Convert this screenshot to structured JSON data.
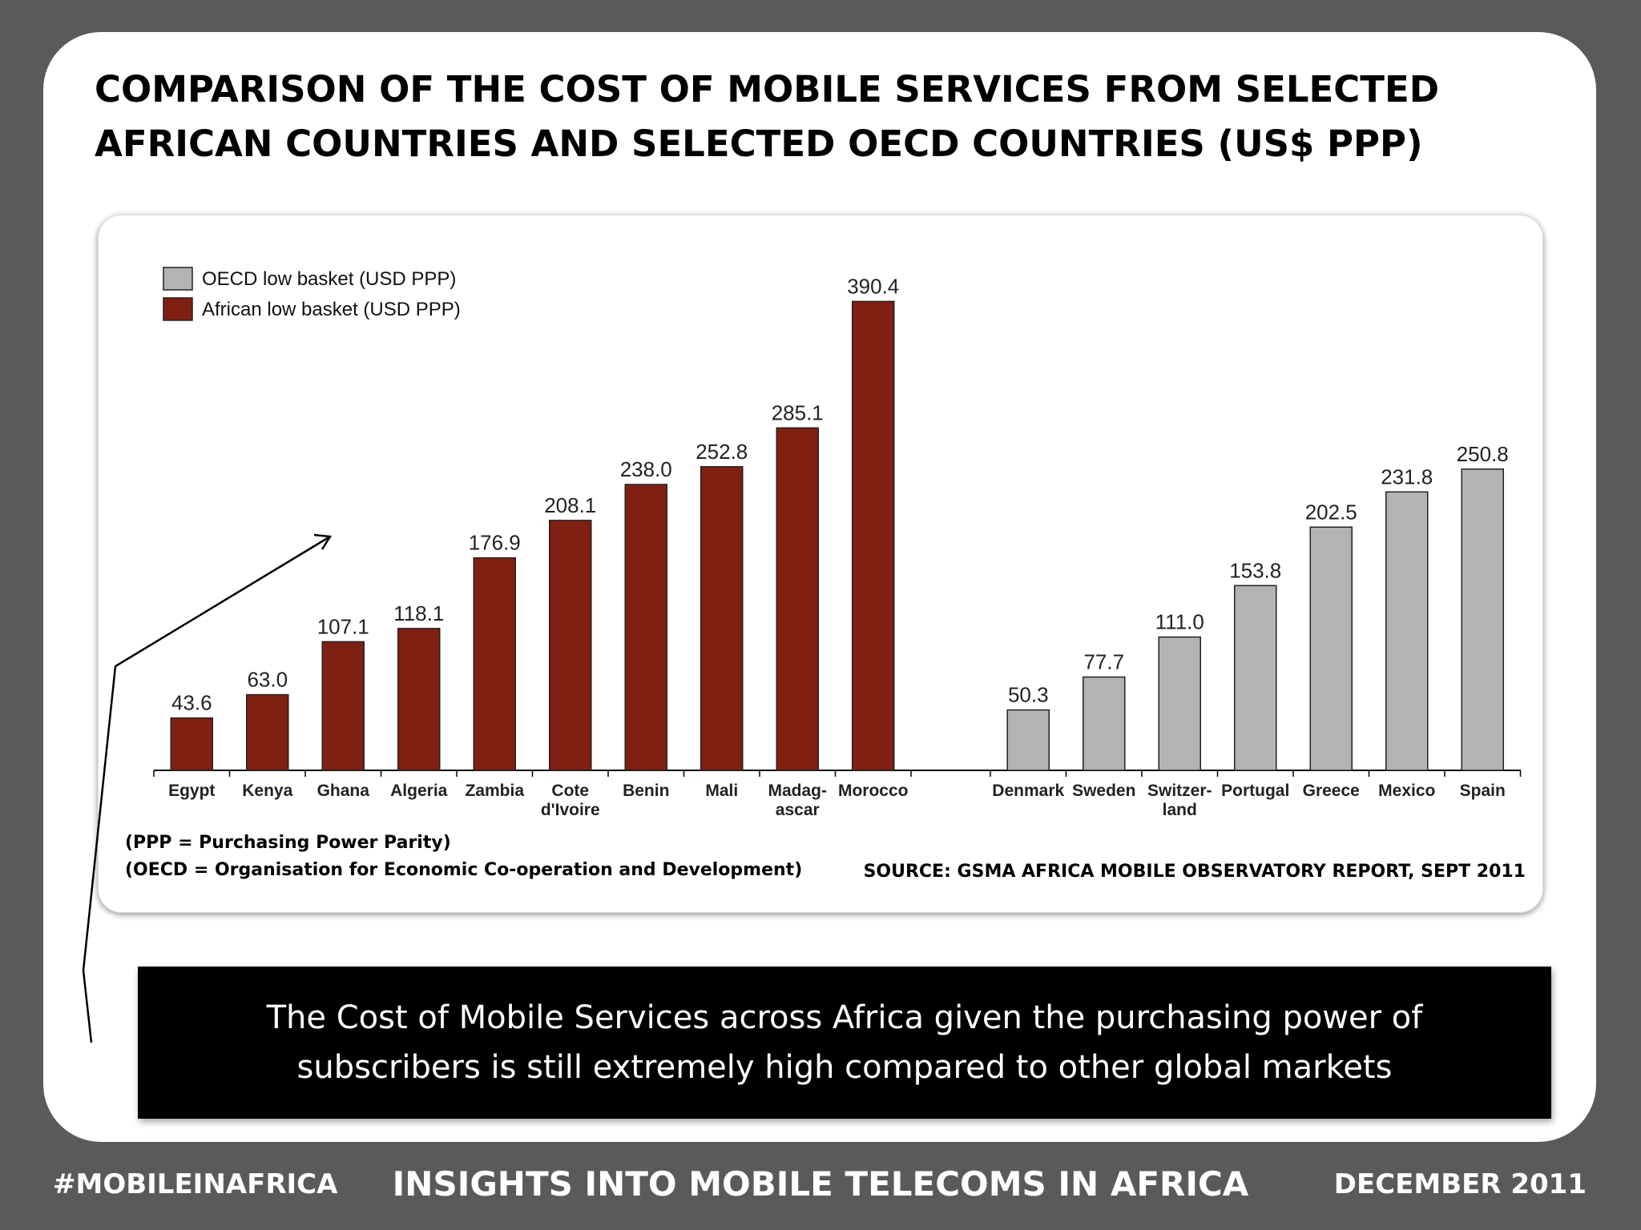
{
  "slide": {
    "title": "COMPARISON OF THE COST OF MOBILE SERVICES FROM SELECTED\nAFRICAN COUNTRIES AND SELECTED OECD COUNTRIES (US$ PPP)",
    "footnote_ppp": "(PPP = Purchasing Power Parity)",
    "footnote_oecd": "(OECD = Organisation for Economic Co-operation and Development)",
    "source": "SOURCE: GSMA AFRICA MOBILE OBSERVATORY REPORT, SEPT 2011",
    "callout": "The Cost of Mobile Services across Africa given the purchasing power of\nsubscribers is still extremely high compared to other global markets"
  },
  "footer": {
    "left": "#MOBILEINAFRICA",
    "center": "INSIGHTS INTO MOBILE TELECOMS IN AFRICA",
    "right": "DECEMBER 2011"
  },
  "colors": {
    "african": "#7f2012",
    "oecd": "#b3b3b3",
    "background": "#5a5a5a",
    "callout_bg": "#000000"
  },
  "chart_data": {
    "type": "bar",
    "ylim": [
      0,
      400
    ],
    "grid": false,
    "legend_position": "top-left",
    "legend": [
      {
        "label": "OECD low basket (USD PPP)",
        "series": "oecd"
      },
      {
        "label": "African low basket (USD PPP)",
        "series": "african"
      }
    ],
    "series": [
      {
        "id": "african",
        "name": "African low basket (USD PPP)",
        "categories": [
          "Egypt",
          "Kenya",
          "Ghana",
          "Algeria",
          "Zambia",
          "Cote\nd'Ivoire",
          "Benin",
          "Mali",
          "Madag-\nascar",
          "Morocco"
        ],
        "values": [
          43.6,
          63.0,
          107.1,
          118.1,
          176.9,
          208.1,
          238.0,
          252.8,
          285.1,
          390.4
        ],
        "labels": [
          "43.6",
          "63.0",
          "107.1",
          "118.1",
          "176.9",
          "208.1",
          "238.0",
          "252.8",
          "285.1",
          "390.4"
        ]
      },
      {
        "id": "oecd",
        "name": "OECD low basket (USD PPP)",
        "categories": [
          "Denmark",
          "Sweden",
          "Switzer-\nland",
          "Portugal",
          "Greece",
          "Mexico",
          "Spain"
        ],
        "values": [
          50.3,
          77.7,
          111.0,
          153.8,
          202.5,
          231.8,
          250.8
        ],
        "labels": [
          "50.3",
          "77.7",
          "111.0",
          "153.8",
          "202.5",
          "231.8",
          "250.8"
        ]
      }
    ]
  }
}
